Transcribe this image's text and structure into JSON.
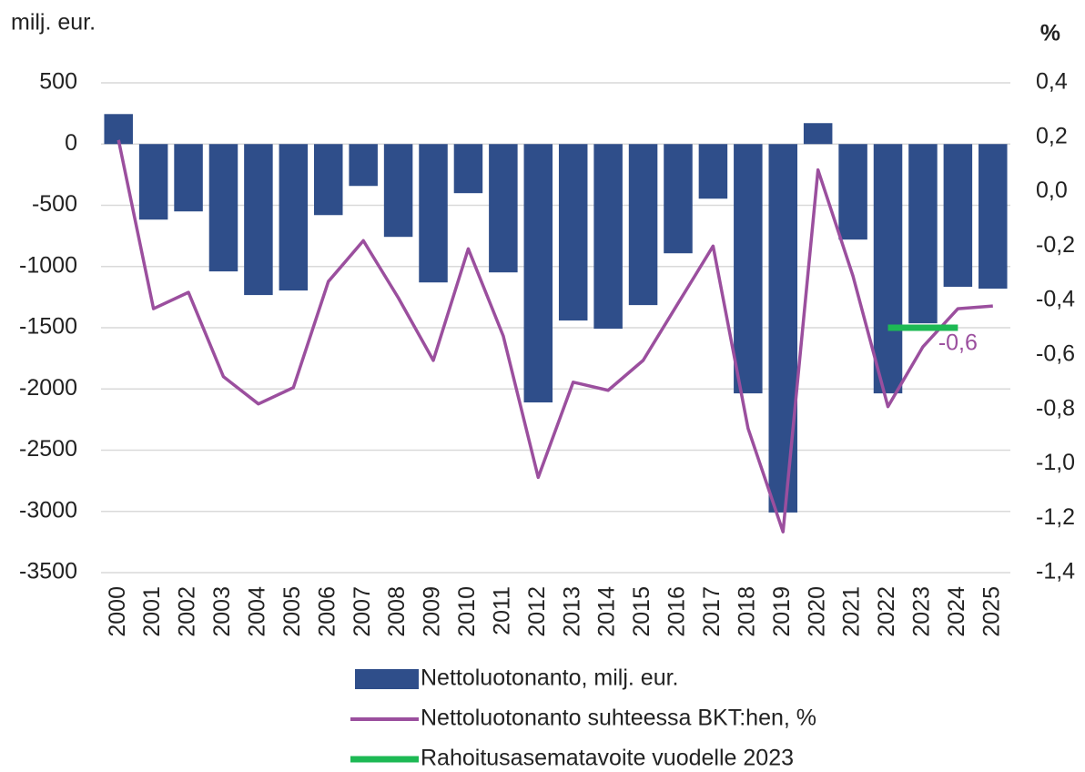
{
  "chart_data": {
    "type": "bar",
    "y_label": "milj. eur.",
    "y2_label": "%",
    "categories": [
      "2000",
      "2001",
      "2002",
      "2003",
      "2004",
      "2005",
      "2006",
      "2007",
      "2008",
      "2009",
      "2010",
      "2011",
      "2012",
      "2013",
      "2014",
      "2015",
      "2016",
      "2017",
      "2018",
      "2019",
      "2020",
      "2021",
      "2022",
      "2023",
      "2024",
      "2025"
    ],
    "series": [
      {
        "name": "Nettoluotonanto, milj. eur.",
        "type": "bar",
        "axis": "y",
        "color": "#2f4e8a",
        "values": [
          245,
          -617,
          -550,
          -1040,
          -1233,
          -1196,
          -580,
          -342,
          -758,
          -1130,
          -401,
          -1048,
          -2110,
          -1441,
          -1508,
          -1315,
          -892,
          -446,
          -2036,
          -3009,
          171,
          -780,
          -2036,
          -1464,
          -1166,
          -1181
        ]
      },
      {
        "name": "Nettoluotonanto suhteessa BKT:hen, %",
        "type": "line",
        "axis": "y2",
        "color": "#9b4f9e",
        "values": [
          0.19,
          -0.43,
          -0.37,
          -0.68,
          -0.78,
          -0.72,
          -0.33,
          -0.18,
          -0.39,
          -0.62,
          -0.21,
          -0.53,
          -1.05,
          -0.7,
          -0.73,
          -0.62,
          -0.41,
          -0.2,
          -0.87,
          -1.25,
          0.08,
          -0.31,
          -0.79,
          -0.57,
          -0.43,
          -0.42
        ]
      },
      {
        "name": "Rahoitusasematavoite vuodelle 2023",
        "type": "line",
        "axis": "y2",
        "color": "#1db954",
        "values": [
          null,
          null,
          null,
          null,
          null,
          null,
          null,
          null,
          null,
          null,
          null,
          null,
          null,
          null,
          null,
          null,
          null,
          null,
          null,
          null,
          null,
          null,
          -0.5,
          -0.5,
          -0.5,
          null
        ]
      }
    ],
    "annotations": [
      {
        "text": "-0,6",
        "category": "2024"
      }
    ],
    "ylim": [
      -3500,
      500
    ],
    "yticks": [
      -3500,
      -3000,
      -2500,
      -2000,
      -1500,
      -1000,
      -500,
      0,
      500
    ],
    "y2lim": [
      -1.4,
      0.4
    ],
    "y2ticks": [
      {
        "value": -1.4,
        "label": "-1,4"
      },
      {
        "value": -1.2,
        "label": "-1,2"
      },
      {
        "value": -1.0,
        "label": "-1,0"
      },
      {
        "value": -0.8,
        "label": "-0,8"
      },
      {
        "value": -0.6,
        "label": "-0,6"
      },
      {
        "value": -0.4,
        "label": "-0,4"
      },
      {
        "value": -0.2,
        "label": "-0,2"
      },
      {
        "value": 0.0,
        "label": "0,0"
      },
      {
        "value": 0.2,
        "label": "0,2"
      },
      {
        "value": 0.4,
        "label": "0,4"
      }
    ],
    "grid": true,
    "legend": "bottom"
  }
}
